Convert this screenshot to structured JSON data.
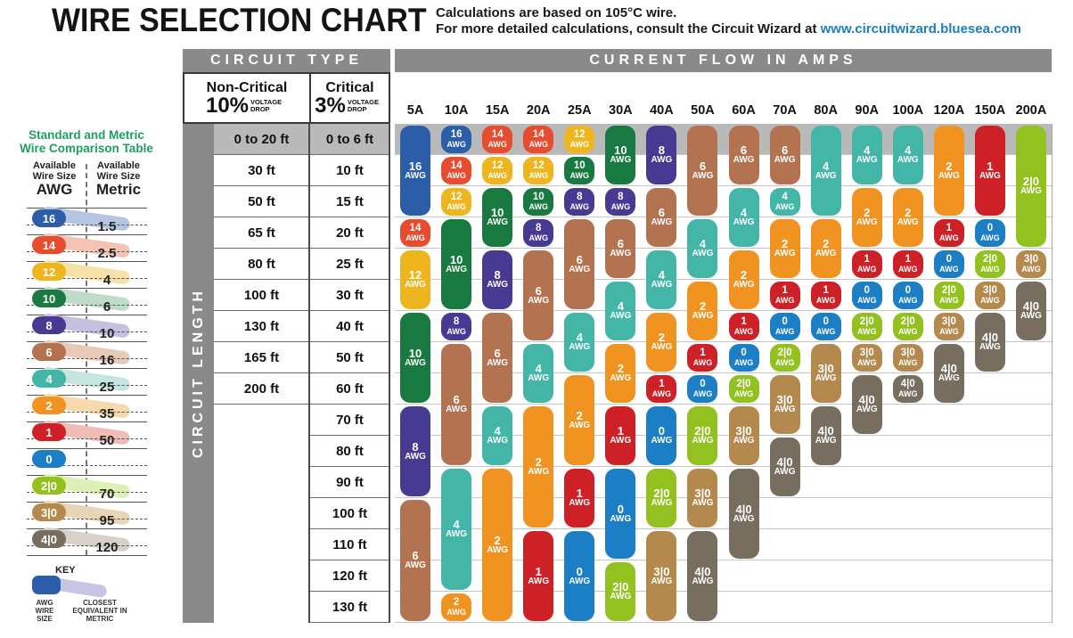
{
  "page": {
    "title": "WIRE SELECTION CHART",
    "note_line1": "Calculations are based on 105°C wire.",
    "note_line2": "For more detailed calculations, consult the Circuit Wizard at",
    "note_link": "www.circuitwizard.bluesea.com"
  },
  "comparison_table": {
    "heading_line1": "Standard and Metric",
    "heading_line2": "Wire Comparison Table",
    "awg_column": {
      "header_line1": "Available",
      "header_line2": "Wire Size",
      "unit": "AWG"
    },
    "metric_column": {
      "header_line1": "Available",
      "header_line2": "Wire Size",
      "unit": "Metric"
    },
    "key": {
      "title": "KEY",
      "awg_caption": "AWG WIRE SIZE",
      "metric_caption": "CLOSEST EQUIVALENT IN METRIC"
    }
  },
  "selection_table": {
    "circuit_type_header": "CIRCUIT TYPE",
    "current_flow_header": "CURRENT FLOW IN AMPS",
    "circuit_length_label": "CIRCUIT LENGTH",
    "non_critical_title": "Non-Critical",
    "non_critical_pct": "10%",
    "critical_title": "Critical",
    "critical_pct": "3%",
    "voltage_drop_caption": "VOLTAGE DROP",
    "awg_suffix": "AWG"
  },
  "colors": {
    "awg": {
      "16": "#2b5da8",
      "14": "#e74c2e",
      "12": "#eeb51f",
      "10": "#187a40",
      "8": "#463a93",
      "6": "#b37250",
      "4": "#43b6a7",
      "2": "#f19321",
      "1": "#cd2127",
      "0": "#1c7ec5",
      "2|0": "#93c120",
      "3|0": "#b3894d",
      "4|0": "#776e60"
    },
    "band": {
      "16": "#b6c6e2",
      "14": "#f5c3b4",
      "12": "#f6e2a8",
      "10": "#bedcc8",
      "8": "#c6bfe0",
      "6": "#e8c8b6",
      "4": "#c5e6e0",
      "2": "#f8d9ab",
      "1": "#efbcb6",
      "0": "",
      "2|0": "#def0b8",
      "3|0": "#e8d5b6",
      "4|0": "#d6d2ca"
    },
    "key_band": "#c7c5e4",
    "header_bar": "#8a8a8a",
    "first_row_band": "#b9b9b9",
    "grid_line_light": "#c6c6c6",
    "grid_line_dark": "#6e6e6e",
    "link": "#1d7fbe",
    "comparison_heading": "#1f9e63"
  },
  "chart_data": {
    "type": "table",
    "title": "WIRE SELECTION CHART",
    "column_header": "CURRENT FLOW IN AMPS",
    "row_header": "CIRCUIT LENGTH",
    "columns": [
      "5A",
      "10A",
      "15A",
      "20A",
      "25A",
      "30A",
      "40A",
      "50A",
      "60A",
      "70A",
      "80A",
      "90A",
      "100A",
      "120A",
      "150A",
      "200A"
    ],
    "rows": [
      {
        "non_critical_10pct": "0 to 20 ft",
        "critical_3pct": "0 to 6 ft"
      },
      {
        "non_critical_10pct": "30 ft",
        "critical_3pct": "10 ft"
      },
      {
        "non_critical_10pct": "50 ft",
        "critical_3pct": "15 ft"
      },
      {
        "non_critical_10pct": "65 ft",
        "critical_3pct": "20 ft"
      },
      {
        "non_critical_10pct": "80 ft",
        "critical_3pct": "25 ft"
      },
      {
        "non_critical_10pct": "100 ft",
        "critical_3pct": "30 ft"
      },
      {
        "non_critical_10pct": "130 ft",
        "critical_3pct": "40 ft"
      },
      {
        "non_critical_10pct": "165 ft",
        "critical_3pct": "50 ft"
      },
      {
        "non_critical_10pct": "200 ft",
        "critical_3pct": "60 ft"
      },
      {
        "non_critical_10pct": "",
        "critical_3pct": "70 ft"
      },
      {
        "non_critical_10pct": "",
        "critical_3pct": "80 ft"
      },
      {
        "non_critical_10pct": "",
        "critical_3pct": "90 ft"
      },
      {
        "non_critical_10pct": "",
        "critical_3pct": "100 ft"
      },
      {
        "non_critical_10pct": "",
        "critical_3pct": "110 ft"
      },
      {
        "non_critical_10pct": "",
        "critical_3pct": "120 ft"
      },
      {
        "non_critical_10pct": "",
        "critical_3pct": "130 ft"
      }
    ],
    "wire_runs": [
      {
        "amp": "5A",
        "runs": [
          {
            "awg": "16",
            "from_row": 1,
            "to_row": 3
          },
          {
            "awg": "14",
            "from_row": 4,
            "to_row": 4
          },
          {
            "awg": "12",
            "from_row": 5,
            "to_row": 6
          },
          {
            "awg": "10",
            "from_row": 7,
            "to_row": 9
          },
          {
            "awg": "8",
            "from_row": 10,
            "to_row": 12
          },
          {
            "awg": "6",
            "from_row": 13,
            "to_row": 16
          }
        ]
      },
      {
        "amp": "10A",
        "runs": [
          {
            "awg": "16",
            "from_row": 1,
            "to_row": 1
          },
          {
            "awg": "14",
            "from_row": 2,
            "to_row": 2
          },
          {
            "awg": "12",
            "from_row": 3,
            "to_row": 3
          },
          {
            "awg": "10",
            "from_row": 4,
            "to_row": 6
          },
          {
            "awg": "8",
            "from_row": 7,
            "to_row": 7
          },
          {
            "awg": "6",
            "from_row": 8,
            "to_row": 11
          },
          {
            "awg": "4",
            "from_row": 12,
            "to_row": 15
          },
          {
            "awg": "2",
            "from_row": 16,
            "to_row": 16
          }
        ]
      },
      {
        "amp": "15A",
        "runs": [
          {
            "awg": "14",
            "from_row": 1,
            "to_row": 1
          },
          {
            "awg": "12",
            "from_row": 2,
            "to_row": 2
          },
          {
            "awg": "10",
            "from_row": 3,
            "to_row": 4
          },
          {
            "awg": "8",
            "from_row": 5,
            "to_row": 6
          },
          {
            "awg": "6",
            "from_row": 7,
            "to_row": 9
          },
          {
            "awg": "4",
            "from_row": 10,
            "to_row": 11
          },
          {
            "awg": "2",
            "from_row": 12,
            "to_row": 16
          }
        ]
      },
      {
        "amp": "20A",
        "runs": [
          {
            "awg": "14",
            "from_row": 1,
            "to_row": 1
          },
          {
            "awg": "12",
            "from_row": 2,
            "to_row": 2
          },
          {
            "awg": "10",
            "from_row": 3,
            "to_row": 3
          },
          {
            "awg": "8",
            "from_row": 4,
            "to_row": 4
          },
          {
            "awg": "6",
            "from_row": 5,
            "to_row": 7
          },
          {
            "awg": "4",
            "from_row": 8,
            "to_row": 9
          },
          {
            "awg": "2",
            "from_row": 10,
            "to_row": 13
          },
          {
            "awg": "1",
            "from_row": 14,
            "to_row": 16
          }
        ]
      },
      {
        "amp": "25A",
        "runs": [
          {
            "awg": "12",
            "from_row": 1,
            "to_row": 1
          },
          {
            "awg": "10",
            "from_row": 2,
            "to_row": 2
          },
          {
            "awg": "8",
            "from_row": 3,
            "to_row": 3
          },
          {
            "awg": "6",
            "from_row": 4,
            "to_row": 6
          },
          {
            "awg": "4",
            "from_row": 7,
            "to_row": 8
          },
          {
            "awg": "2",
            "from_row": 9,
            "to_row": 11
          },
          {
            "awg": "1",
            "from_row": 12,
            "to_row": 13
          },
          {
            "awg": "0",
            "from_row": 14,
            "to_row": 16
          }
        ]
      },
      {
        "amp": "30A",
        "runs": [
          {
            "awg": "10",
            "from_row": 1,
            "to_row": 2
          },
          {
            "awg": "8",
            "from_row": 3,
            "to_row": 3
          },
          {
            "awg": "6",
            "from_row": 4,
            "to_row": 5
          },
          {
            "awg": "4",
            "from_row": 6,
            "to_row": 7
          },
          {
            "awg": "2",
            "from_row": 8,
            "to_row": 9
          },
          {
            "awg": "1",
            "from_row": 10,
            "to_row": 11
          },
          {
            "awg": "0",
            "from_row": 12,
            "to_row": 14
          },
          {
            "awg": "2|0",
            "from_row": 15,
            "to_row": 16
          }
        ]
      },
      {
        "amp": "40A",
        "runs": [
          {
            "awg": "8",
            "from_row": 1,
            "to_row": 2
          },
          {
            "awg": "6",
            "from_row": 3,
            "to_row": 4
          },
          {
            "awg": "4",
            "from_row": 5,
            "to_row": 6
          },
          {
            "awg": "2",
            "from_row": 7,
            "to_row": 8
          },
          {
            "awg": "1",
            "from_row": 9,
            "to_row": 9
          },
          {
            "awg": "0",
            "from_row": 10,
            "to_row": 11
          },
          {
            "awg": "2|0",
            "from_row": 12,
            "to_row": 13
          },
          {
            "awg": "3|0",
            "from_row": 14,
            "to_row": 16
          }
        ]
      },
      {
        "amp": "50A",
        "runs": [
          {
            "awg": "6",
            "from_row": 1,
            "to_row": 3
          },
          {
            "awg": "4",
            "from_row": 4,
            "to_row": 5
          },
          {
            "awg": "2",
            "from_row": 6,
            "to_row": 7
          },
          {
            "awg": "1",
            "from_row": 8,
            "to_row": 8
          },
          {
            "awg": "0",
            "from_row": 9,
            "to_row": 9
          },
          {
            "awg": "2|0",
            "from_row": 10,
            "to_row": 11
          },
          {
            "awg": "3|0",
            "from_row": 12,
            "to_row": 13
          },
          {
            "awg": "4|0",
            "from_row": 14,
            "to_row": 16
          }
        ]
      },
      {
        "amp": "60A",
        "runs": [
          {
            "awg": "6",
            "from_row": 1,
            "to_row": 2
          },
          {
            "awg": "4",
            "from_row": 3,
            "to_row": 4
          },
          {
            "awg": "2",
            "from_row": 5,
            "to_row": 6
          },
          {
            "awg": "1",
            "from_row": 7,
            "to_row": 7
          },
          {
            "awg": "0",
            "from_row": 8,
            "to_row": 8
          },
          {
            "awg": "2|0",
            "from_row": 9,
            "to_row": 9
          },
          {
            "awg": "3|0",
            "from_row": 10,
            "to_row": 11
          },
          {
            "awg": "4|0",
            "from_row": 12,
            "to_row": 14
          }
        ]
      },
      {
        "amp": "70A",
        "runs": [
          {
            "awg": "6",
            "from_row": 1,
            "to_row": 2
          },
          {
            "awg": "4",
            "from_row": 3,
            "to_row": 3
          },
          {
            "awg": "2",
            "from_row": 4,
            "to_row": 5
          },
          {
            "awg": "1",
            "from_row": 6,
            "to_row": 6
          },
          {
            "awg": "0",
            "from_row": 7,
            "to_row": 7
          },
          {
            "awg": "2|0",
            "from_row": 8,
            "to_row": 8
          },
          {
            "awg": "3|0",
            "from_row": 9,
            "to_row": 10
          },
          {
            "awg": "4|0",
            "from_row": 11,
            "to_row": 12
          }
        ]
      },
      {
        "amp": "80A",
        "runs": [
          {
            "awg": "4",
            "from_row": 1,
            "to_row": 3
          },
          {
            "awg": "2",
            "from_row": 4,
            "to_row": 5
          },
          {
            "awg": "1",
            "from_row": 6,
            "to_row": 6
          },
          {
            "awg": "0",
            "from_row": 7,
            "to_row": 7
          },
          {
            "awg": "3|0",
            "from_row": 8,
            "to_row": 9
          },
          {
            "awg": "4|0",
            "from_row": 10,
            "to_row": 11
          }
        ]
      },
      {
        "amp": "90A",
        "runs": [
          {
            "awg": "4",
            "from_row": 1,
            "to_row": 2
          },
          {
            "awg": "2",
            "from_row": 3,
            "to_row": 4
          },
          {
            "awg": "1",
            "from_row": 5,
            "to_row": 5
          },
          {
            "awg": "0",
            "from_row": 6,
            "to_row": 6
          },
          {
            "awg": "2|0",
            "from_row": 7,
            "to_row": 7
          },
          {
            "awg": "3|0",
            "from_row": 8,
            "to_row": 8
          },
          {
            "awg": "4|0",
            "from_row": 9,
            "to_row": 10
          }
        ]
      },
      {
        "amp": "100A",
        "runs": [
          {
            "awg": "4",
            "from_row": 1,
            "to_row": 2
          },
          {
            "awg": "2",
            "from_row": 3,
            "to_row": 4
          },
          {
            "awg": "1",
            "from_row": 5,
            "to_row": 5
          },
          {
            "awg": "0",
            "from_row": 6,
            "to_row": 6
          },
          {
            "awg": "2|0",
            "from_row": 7,
            "to_row": 7
          },
          {
            "awg": "3|0",
            "from_row": 8,
            "to_row": 8
          },
          {
            "awg": "4|0",
            "from_row": 9,
            "to_row": 9
          }
        ]
      },
      {
        "amp": "120A",
        "runs": [
          {
            "awg": "2",
            "from_row": 1,
            "to_row": 3
          },
          {
            "awg": "1",
            "from_row": 4,
            "to_row": 4
          },
          {
            "awg": "0",
            "from_row": 5,
            "to_row": 5
          },
          {
            "awg": "2|0",
            "from_row": 6,
            "to_row": 6
          },
          {
            "awg": "3|0",
            "from_row": 7,
            "to_row": 7
          },
          {
            "awg": "4|0",
            "from_row": 8,
            "to_row": 9
          }
        ]
      },
      {
        "amp": "150A",
        "runs": [
          {
            "awg": "1",
            "from_row": 1,
            "to_row": 3
          },
          {
            "awg": "0",
            "from_row": 4,
            "to_row": 4
          },
          {
            "awg": "2|0",
            "from_row": 5,
            "to_row": 5
          },
          {
            "awg": "3|0",
            "from_row": 6,
            "to_row": 6
          },
          {
            "awg": "4|0",
            "from_row": 7,
            "to_row": 8
          }
        ]
      },
      {
        "amp": "200A",
        "runs": [
          {
            "awg": "2|0",
            "from_row": 1,
            "to_row": 4
          },
          {
            "awg": "3|0",
            "from_row": 5,
            "to_row": 5
          },
          {
            "awg": "4|0",
            "from_row": 6,
            "to_row": 7
          }
        ]
      }
    ],
    "awg_metric_equivalents": [
      {
        "awg": "16",
        "metric": "1.5"
      },
      {
        "awg": "14",
        "metric": "2.5"
      },
      {
        "awg": "12",
        "metric": "4"
      },
      {
        "awg": "10",
        "metric": "6"
      },
      {
        "awg": "8",
        "metric": "10"
      },
      {
        "awg": "6",
        "metric": "16"
      },
      {
        "awg": "4",
        "metric": "25"
      },
      {
        "awg": "2",
        "metric": "35"
      },
      {
        "awg": "1",
        "metric": "50"
      },
      {
        "awg": "0",
        "metric": ""
      },
      {
        "awg": "2|0",
        "metric": "70"
      },
      {
        "awg": "3|0",
        "metric": "95"
      },
      {
        "awg": "4|0",
        "metric": "120"
      }
    ]
  }
}
